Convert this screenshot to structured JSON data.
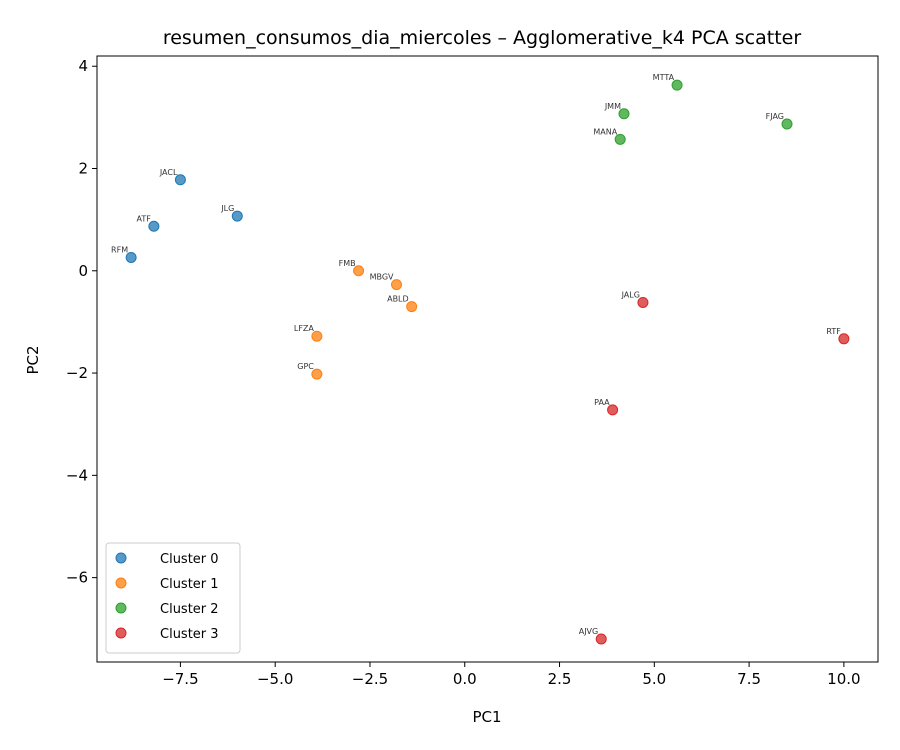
{
  "chart_data": {
    "type": "scatter",
    "title": "resumen_consumos_dia_miercoles – Agglomerative_k4 PCA scatter",
    "xlabel": "PC1",
    "ylabel": "PC2",
    "xlim": [
      -9.7,
      10.9
    ],
    "ylim": [
      -7.65,
      4.2
    ],
    "xticks": [
      -7.5,
      -5.0,
      -2.5,
      0.0,
      2.5,
      5.0,
      7.5,
      10.0
    ],
    "xtick_labels": [
      "−7.5",
      "−5.0",
      "−2.5",
      "0.0",
      "2.5",
      "5.0",
      "7.5",
      "10.0"
    ],
    "yticks": [
      -6,
      -4,
      -2,
      0,
      2,
      4
    ],
    "ytick_labels": [
      "−6",
      "−4",
      "−2",
      "0",
      "2",
      "4"
    ],
    "grid": false,
    "legend_position": "lower-left",
    "series": [
      {
        "name": "Cluster 0",
        "color": "#1f77b4",
        "points": [
          {
            "label": "JACL",
            "x": -7.5,
            "y": 1.78
          },
          {
            "label": "ATF",
            "x": -8.2,
            "y": 0.87
          },
          {
            "label": "JLG",
            "x": -6.0,
            "y": 1.07
          },
          {
            "label": "RFM",
            "x": -8.8,
            "y": 0.26
          }
        ]
      },
      {
        "name": "Cluster 1",
        "color": "#ff7f0e",
        "points": [
          {
            "label": "FMB",
            "x": -2.8,
            "y": 0.0
          },
          {
            "label": "MBGV",
            "x": -1.8,
            "y": -0.27
          },
          {
            "label": "ABLD",
            "x": -1.4,
            "y": -0.7
          },
          {
            "label": "LFZA",
            "x": -3.9,
            "y": -1.28
          },
          {
            "label": "GPC",
            "x": -3.9,
            "y": -2.02
          }
        ]
      },
      {
        "name": "Cluster 2",
        "color": "#2ca02c",
        "points": [
          {
            "label": "MTTA",
            "x": 5.6,
            "y": 3.63
          },
          {
            "label": "JMM",
            "x": 4.2,
            "y": 3.07
          },
          {
            "label": "MANA",
            "x": 4.1,
            "y": 2.57
          },
          {
            "label": "FJAG",
            "x": 8.5,
            "y": 2.87
          }
        ]
      },
      {
        "name": "Cluster 3",
        "color": "#d62728",
        "points": [
          {
            "label": "JALG",
            "x": 4.7,
            "y": -0.62
          },
          {
            "label": "RTF",
            "x": 10.0,
            "y": -1.33
          },
          {
            "label": "PAA",
            "x": 3.9,
            "y": -2.72
          },
          {
            "label": "AJVG",
            "x": 3.6,
            "y": -7.2
          }
        ]
      }
    ]
  }
}
